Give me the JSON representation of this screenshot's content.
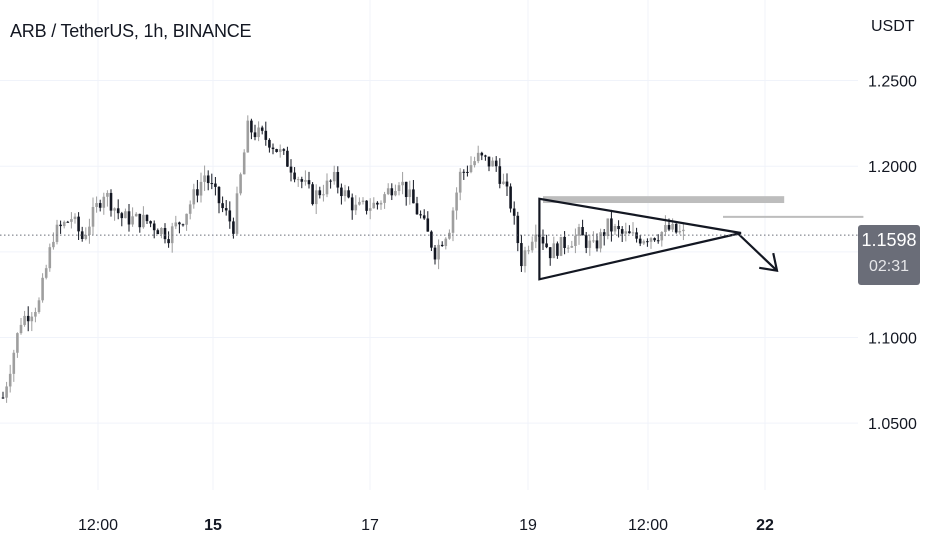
{
  "header": {
    "title": "ARB / TetherUS, 1h, BINANCE",
    "currency": "USDT"
  },
  "price_badge": {
    "price": "1.1598",
    "countdown": "02:31"
  },
  "chart_data": {
    "type": "candlestick",
    "symbol": "ARB / TetherUS",
    "interval": "1h",
    "exchange": "BINANCE",
    "last_price": 1.1598,
    "ylim": [
      1.011,
      1.297
    ],
    "y_ticks": [
      {
        "value": 1.25,
        "label": "1.2500"
      },
      {
        "value": 1.2,
        "label": "1.2000"
      },
      {
        "value": 1.1,
        "label": "1.1000"
      },
      {
        "value": 1.05,
        "label": "1.0500"
      }
    ],
    "x_ticks": [
      {
        "label": "12:00",
        "bold": false
      },
      {
        "label": "15",
        "bold": true
      },
      {
        "label": "17",
        "bold": false
      },
      {
        "label": "19",
        "bold": false
      },
      {
        "label": "12:00",
        "bold": false
      },
      {
        "label": "22",
        "bold": true
      }
    ],
    "grid": true,
    "trend_anchors": [
      {
        "i": 0,
        "p": 1.065
      },
      {
        "i": 5,
        "p": 1.11
      },
      {
        "i": 10,
        "p": 1.12
      },
      {
        "i": 14,
        "p": 1.16
      },
      {
        "i": 19,
        "p": 1.17
      },
      {
        "i": 22,
        "p": 1.158
      },
      {
        "i": 28,
        "p": 1.185
      },
      {
        "i": 33,
        "p": 1.17
      },
      {
        "i": 40,
        "p": 1.168
      },
      {
        "i": 46,
        "p": 1.16
      },
      {
        "i": 50,
        "p": 1.17
      },
      {
        "i": 56,
        "p": 1.195
      },
      {
        "i": 61,
        "p": 1.175
      },
      {
        "i": 64,
        "p": 1.165
      },
      {
        "i": 68,
        "p": 1.222
      },
      {
        "i": 74,
        "p": 1.215
      },
      {
        "i": 80,
        "p": 1.2
      },
      {
        "i": 86,
        "p": 1.182
      },
      {
        "i": 92,
        "p": 1.192
      },
      {
        "i": 98,
        "p": 1.175
      },
      {
        "i": 104,
        "p": 1.178
      },
      {
        "i": 110,
        "p": 1.193
      },
      {
        "i": 116,
        "p": 1.17
      },
      {
        "i": 120,
        "p": 1.15
      },
      {
        "i": 124,
        "p": 1.165
      },
      {
        "i": 127,
        "p": 1.195
      },
      {
        "i": 132,
        "p": 1.205
      },
      {
        "i": 137,
        "p": 1.2
      },
      {
        "i": 141,
        "p": 1.178
      },
      {
        "i": 144,
        "p": 1.145
      },
      {
        "i": 148,
        "p": 1.165
      },
      {
        "i": 152,
        "p": 1.15
      },
      {
        "i": 156,
        "p": 1.155
      },
      {
        "i": 160,
        "p": 1.16
      },
      {
        "i": 164,
        "p": 1.152
      },
      {
        "i": 168,
        "p": 1.165
      },
      {
        "i": 172,
        "p": 1.16
      },
      {
        "i": 176,
        "p": 1.158
      },
      {
        "i": 181,
        "p": 1.16
      },
      {
        "i": 185,
        "p": 1.163
      },
      {
        "i": 189,
        "p": 1.16
      }
    ],
    "drawings": [
      {
        "kind": "rectangle",
        "from_i": 150,
        "to_i": 217,
        "price_top": 1.1825,
        "price_bottom": 1.1785,
        "color": "#bdbdbd"
      },
      {
        "kind": "rectangle",
        "from_i": 200,
        "to_i": 239,
        "price_top": 1.171,
        "price_bottom": 1.17,
        "color": "#bdbdbd"
      },
      {
        "kind": "triangle",
        "points": [
          {
            "i": 149,
            "p": 1.181
          },
          {
            "i": 149,
            "p": 1.134
          },
          {
            "i": 205,
            "p": 1.161
          }
        ]
      },
      {
        "kind": "arrow",
        "from": {
          "i": 204,
          "p": 1.161
        },
        "to": {
          "i": 215,
          "p": 1.139
        }
      }
    ]
  }
}
